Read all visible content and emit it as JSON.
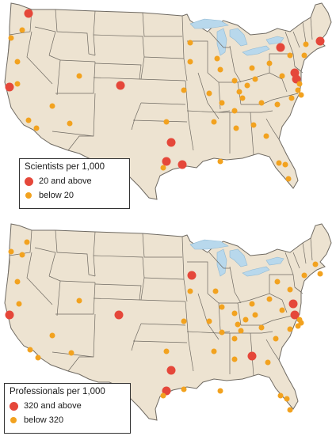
{
  "colors": {
    "land": "#ede3d1",
    "border": "#6f6a62",
    "water": "#b8d8ec",
    "high": "#e5473a",
    "low": "#f2a21f"
  },
  "maps": [
    {
      "legend": {
        "title": "Scientists per 1,000",
        "items": [
          {
            "label": "20 and above",
            "class": "high"
          },
          {
            "label": "below 20",
            "class": "low"
          }
        ]
      }
    },
    {
      "legend": {
        "title": "Professionals per 1,000",
        "items": [
          {
            "label": "320 and above",
            "class": "high"
          },
          {
            "label": "below 320",
            "class": "low"
          }
        ]
      }
    }
  ]
}
